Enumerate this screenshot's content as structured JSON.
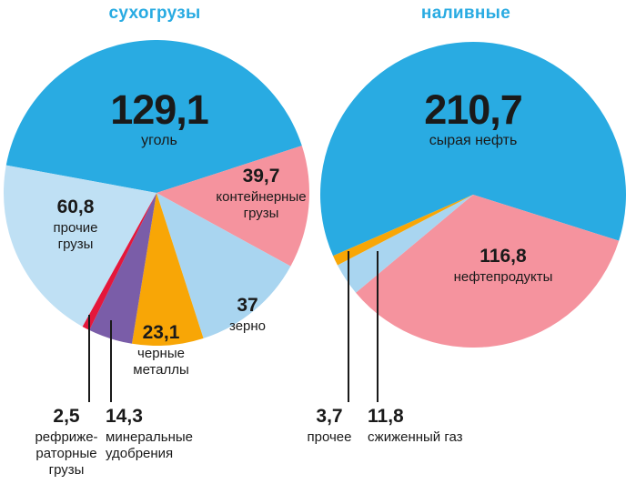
{
  "page": {
    "background_color": "#FFFFFF",
    "text_color": "#1A1A1A",
    "accent_color": "#29ABE2"
  },
  "chart_data": [
    {
      "type": "pie",
      "title": "сухогрузы",
      "title_color": "#29ABE2",
      "legend_position": "none",
      "start_angle_deg": 280.4,
      "slices": [
        {
          "id": "coal",
          "label": "уголь",
          "label_display": "уголь",
          "value": 129.1,
          "value_display": "129,1",
          "color": "#29ABE2"
        },
        {
          "id": "container-cargo",
          "label": "контейнерные грузы",
          "label_display": "контейнерные\nгрузы",
          "value": 39.7,
          "value_display": "39,7",
          "color": "#F5939E"
        },
        {
          "id": "grain",
          "label": "зерно",
          "label_display": "зерно",
          "value": 37,
          "value_display": "37",
          "color": "#A9D5F0"
        },
        {
          "id": "ferrous-metals",
          "label": "черные металлы",
          "label_display": "черные\nметаллы",
          "value": 23.1,
          "value_display": "23,1",
          "color": "#F8A606"
        },
        {
          "id": "mineral-fertilizers",
          "label": "минеральные удобрения",
          "label_display": "минеральные\nудобрения",
          "value": 14.3,
          "value_display": "14,3",
          "color": "#7A5DA8"
        },
        {
          "id": "refrigerated-cargo",
          "label": "рефрижераторные грузы",
          "label_display": "рефриже-\nраторные\nгрузы",
          "value": 2.5,
          "value_display": "2,5",
          "color": "#E4173B"
        },
        {
          "id": "other-cargo",
          "label": "прочие грузы",
          "label_display": "прочие\nгрузы",
          "value": 60.8,
          "value_display": "60,8",
          "color": "#BFE0F4"
        }
      ]
    },
    {
      "type": "pie",
      "title": "наливные",
      "title_color": "#29ABE2",
      "legend_position": "none",
      "start_angle_deg": 246.4,
      "slices": [
        {
          "id": "crude-oil",
          "label": "сырая нефть",
          "label_display": "сырая нефть",
          "value": 210.7,
          "value_display": "210,7",
          "color": "#29ABE2"
        },
        {
          "id": "oil-products",
          "label": "нефтепродукты",
          "label_display": "нефтепродукты",
          "value": 116.8,
          "value_display": "116,8",
          "color": "#F5939E"
        },
        {
          "id": "liquefied-gas",
          "label": "сжиженный газ",
          "label_display": "сжиженный газ",
          "value": 11.8,
          "value_display": "11,8",
          "color": "#A9D5F0"
        },
        {
          "id": "other",
          "label": "прочее",
          "label_display": "прочее",
          "value": 3.7,
          "value_display": "3,7",
          "color": "#F8A606"
        }
      ]
    }
  ]
}
